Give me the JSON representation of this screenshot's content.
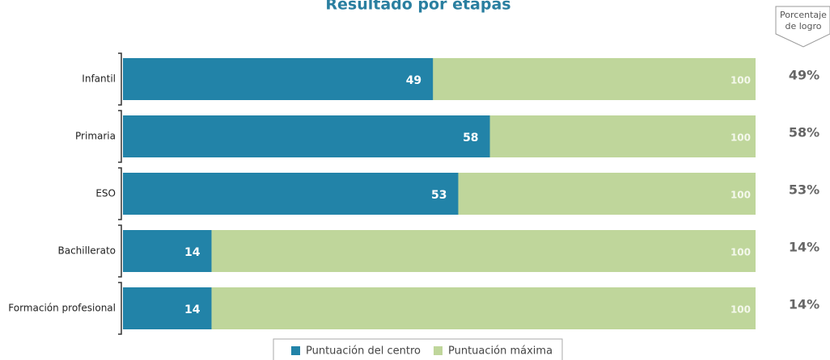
{
  "chart_data": {
    "type": "bar",
    "orientation": "horizontal",
    "stacking": "overlay",
    "title": "Resultado por etapas",
    "categories": [
      "Infantil",
      "Primaria",
      "ESO",
      "Bachillerato",
      "Formación profesional"
    ],
    "series": [
      {
        "name": "Puntuación del centro",
        "color": "#2283a8",
        "values": [
          49,
          58,
          53,
          14,
          14
        ]
      },
      {
        "name": "Puntuación máxima",
        "color": "#bfd69b",
        "values": [
          100,
          100,
          100,
          100,
          100
        ]
      }
    ],
    "xlim": [
      0,
      100
    ],
    "achievement": {
      "title": [
        "Porcentaje",
        "de logro"
      ],
      "values": [
        49,
        58,
        53,
        14,
        14
      ],
      "value_labels": [
        "49%",
        "58%",
        "53%",
        "14%",
        "14%"
      ]
    }
  }
}
